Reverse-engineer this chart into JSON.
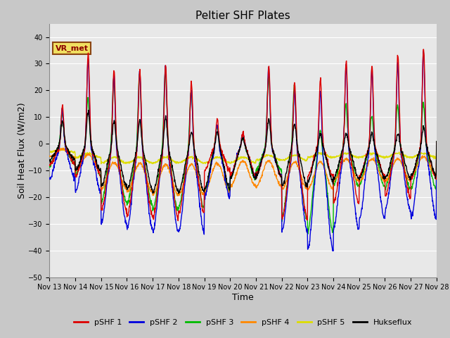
{
  "title": "Peltier SHF Plates",
  "xlabel": "Time",
  "ylabel": "Soil Heat Flux (W/m2)",
  "ylim": [
    -50,
    45
  ],
  "yticks": [
    -50,
    -40,
    -30,
    -20,
    -10,
    0,
    10,
    20,
    30,
    40
  ],
  "fig_bg": "#c8c8c8",
  "plot_bg": "#e8e8e8",
  "series": [
    {
      "label": "pSHF 1",
      "color": "#dd0000"
    },
    {
      "label": "pSHF 2",
      "color": "#0000dd"
    },
    {
      "label": "pSHF 3",
      "color": "#00bb00"
    },
    {
      "label": "pSHF 4",
      "color": "#ff8800"
    },
    {
      "label": "pSHF 5",
      "color": "#dddd00"
    },
    {
      "label": "Hukseflux",
      "color": "#000000"
    }
  ],
  "annotation_text": "VR_met",
  "grid_color": "#ffffff",
  "title_fontsize": 11,
  "tick_fontsize": 7,
  "label_fontsize": 9,
  "n_days": 15,
  "pts_per_day": 96,
  "pSHF1_peaks": [
    15,
    35,
    30,
    30,
    32,
    25,
    10,
    5,
    30,
    25,
    25,
    33,
    30,
    35,
    37,
    0
  ],
  "pSHF1_night": [
    -8,
    -12,
    -25,
    -27,
    -28,
    -26,
    -10,
    -12,
    -12,
    -28,
    -12,
    -22,
    -12,
    -20,
    -13,
    0
  ],
  "pSHF2_peaks": [
    14,
    33,
    28,
    30,
    32,
    23,
    9,
    5,
    30,
    23,
    23,
    32,
    30,
    32,
    37,
    0
  ],
  "pSHF2_night": [
    -13,
    -18,
    -30,
    -32,
    -33,
    -33,
    -20,
    -12,
    -12,
    -33,
    -40,
    -32,
    -28,
    -25,
    -28,
    0
  ],
  "pSHF3_peaks": [
    12,
    18,
    26,
    28,
    30,
    22,
    8,
    4,
    26,
    24,
    8,
    16,
    12,
    16,
    17,
    0
  ],
  "pSHF3_night": [
    -8,
    -12,
    -22,
    -23,
    -25,
    -24,
    -18,
    -13,
    -10,
    -28,
    -33,
    -16,
    -16,
    -17,
    -17,
    0
  ],
  "pSHF4_peaks": [
    0,
    0,
    0,
    0,
    0,
    0,
    0,
    0,
    0,
    0,
    0,
    0,
    0,
    0,
    0,
    0
  ],
  "pSHF4_night": [
    -5,
    -10,
    -17,
    -18,
    -19,
    -19,
    -18,
    -16,
    -16,
    -17,
    -17,
    -14,
    -14,
    -14,
    -12,
    0
  ],
  "pSHF5_peaks": [
    0,
    0,
    0,
    0,
    0,
    0,
    0,
    0,
    0,
    0,
    0,
    0,
    0,
    0,
    0,
    0
  ],
  "pSHF5_night": [
    -3,
    -5,
    -7,
    -7,
    -7,
    -7,
    -7,
    -7,
    -6,
    -6,
    -5,
    -5,
    -5,
    -5,
    -5,
    0
  ],
  "pHuk_peaks": [
    9,
    13,
    10,
    10,
    11,
    6,
    6,
    3,
    10,
    9,
    5,
    5,
    5,
    5,
    7,
    0
  ],
  "pHuk_night": [
    -6,
    -10,
    -16,
    -17,
    -18,
    -18,
    -17,
    -13,
    -12,
    -16,
    -14,
    -13,
    -13,
    -13,
    -12,
    0
  ],
  "xtick_labels": [
    "Nov 13",
    "Nov 14",
    "Nov 15",
    "Nov 16",
    "Nov 17",
    "Nov 18",
    "Nov 19",
    "Nov 20",
    "Nov 21",
    "Nov 22",
    "Nov 23",
    "Nov 24",
    "Nov 25",
    "Nov 26",
    "Nov 27",
    "Nov 28"
  ]
}
